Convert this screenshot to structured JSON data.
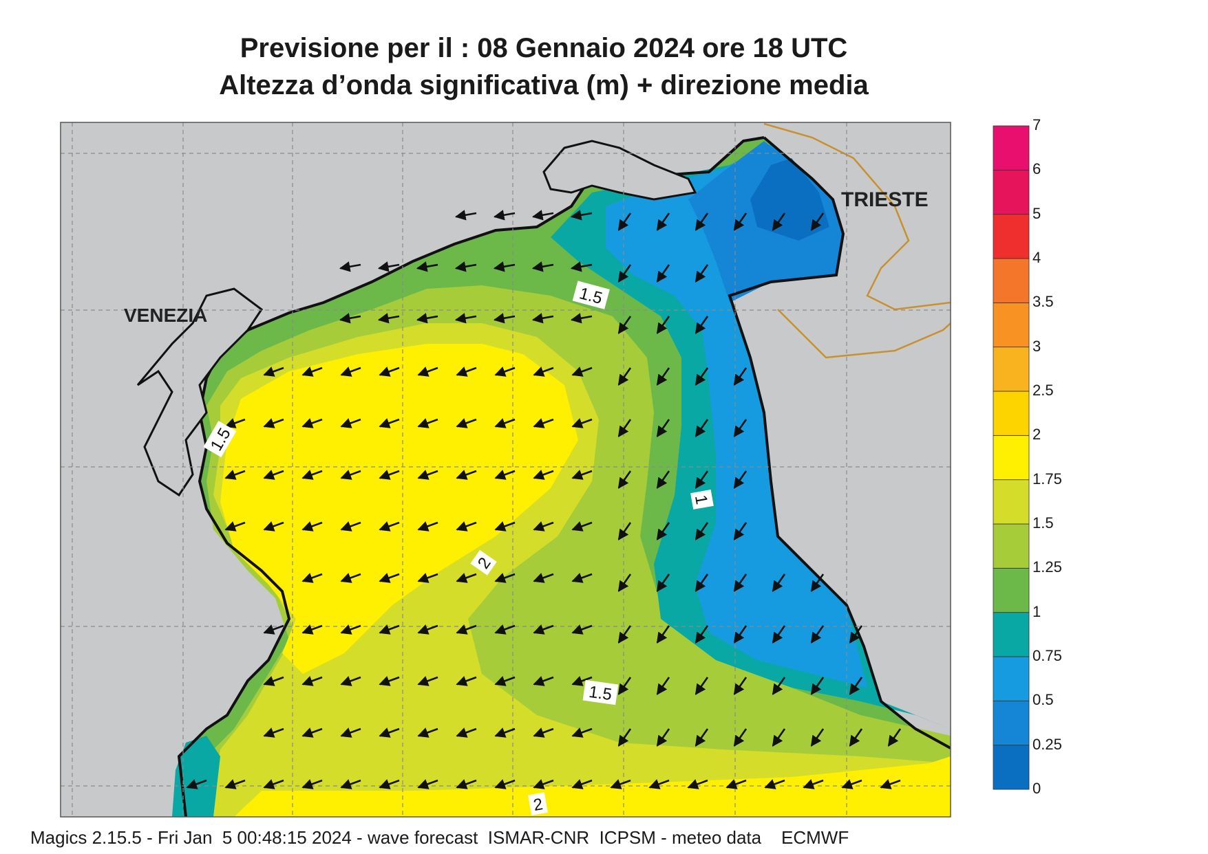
{
  "title": {
    "line1": "Previsione per il  :  08  Gennaio  2024   ore 18 UTC",
    "line2": "Altezza d’onda significativa (m) + direzione media"
  },
  "map": {
    "city_labels": [
      "VENEZIA",
      "TRIESTE"
    ],
    "contour_labels": [
      "1.5",
      "1.5",
      "2",
      "1",
      "1.5",
      "2"
    ],
    "arrow_direction": "toward south-west / west",
    "colors": {
      "land": "#c8c9cb",
      "coast": "#111111",
      "border": "#c8902e",
      "grid": "#8a8a8a"
    }
  },
  "colorbar": {
    "ticks": [
      "0",
      "0.25",
      "0.5",
      "0.75",
      "1",
      "1.25",
      "1.5",
      "1.75",
      "2",
      "2.5",
      "3",
      "3.5",
      "4",
      "5",
      "6",
      "7"
    ],
    "colors": [
      "#0a6fc1",
      "#1586d6",
      "#169be0",
      "#0aa8a4",
      "#6cb94a",
      "#a6cc3a",
      "#d4dd2a",
      "#ffef00",
      "#fdd400",
      "#f9b31e",
      "#f79223",
      "#f4762a",
      "#ee2f2e",
      "#e6145b",
      "#e80f6e"
    ]
  },
  "footer": "Magics 2.15.5 - Fri Jan  5 00:48:15 2024 - wave forecast  ISMAR-CNR  ICPSM - meteo data    ECMWF"
}
